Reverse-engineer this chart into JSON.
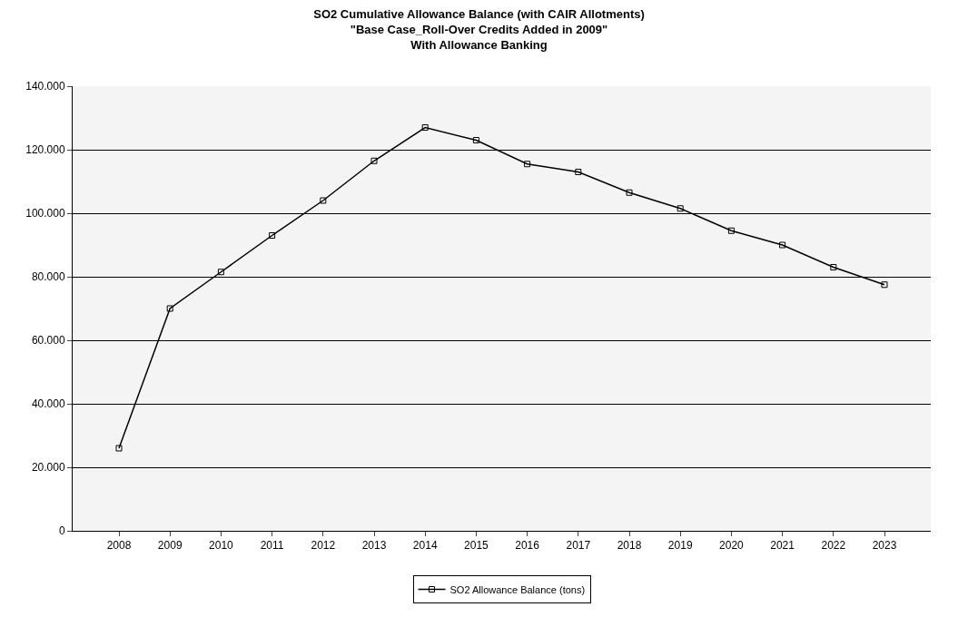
{
  "chart_data": {
    "type": "line",
    "title": "SO2 Cumulative Allowance Balance (with CAIR Allotments)\n\"Base Case_Roll-Over Credits Added in 2009\"\nWith Allowance Banking",
    "categories": [
      "2008",
      "2009",
      "2010",
      "2011",
      "2012",
      "2013",
      "2014",
      "2015",
      "2016",
      "2017",
      "2018",
      "2019",
      "2020",
      "2021",
      "2022",
      "2023"
    ],
    "series": [
      {
        "name": "SO2 Allowance Balance (tons)",
        "color": "#000000",
        "values": [
          26000,
          70000,
          81500,
          93000,
          104000,
          116500,
          127000,
          123000,
          115500,
          113000,
          106500,
          101500,
          94500,
          90000,
          83000,
          77500
        ]
      }
    ],
    "ylim": [
      0,
      140000
    ],
    "yticks": [
      0,
      {
        "value": 20000,
        "label": "20.000"
      },
      {
        "value": 40000,
        "label": "40.000"
      },
      {
        "value": 60000,
        "label": "60.000"
      },
      {
        "value": 80000,
        "label": "80.000"
      },
      {
        "value": 100000,
        "label": "100.000"
      },
      {
        "value": 120000,
        "label": "120.000"
      },
      {
        "value": 140000,
        "label": "140.000"
      }
    ],
    "grid": "y",
    "legend": "bottom",
    "marker": "square",
    "line_style": "solid"
  }
}
